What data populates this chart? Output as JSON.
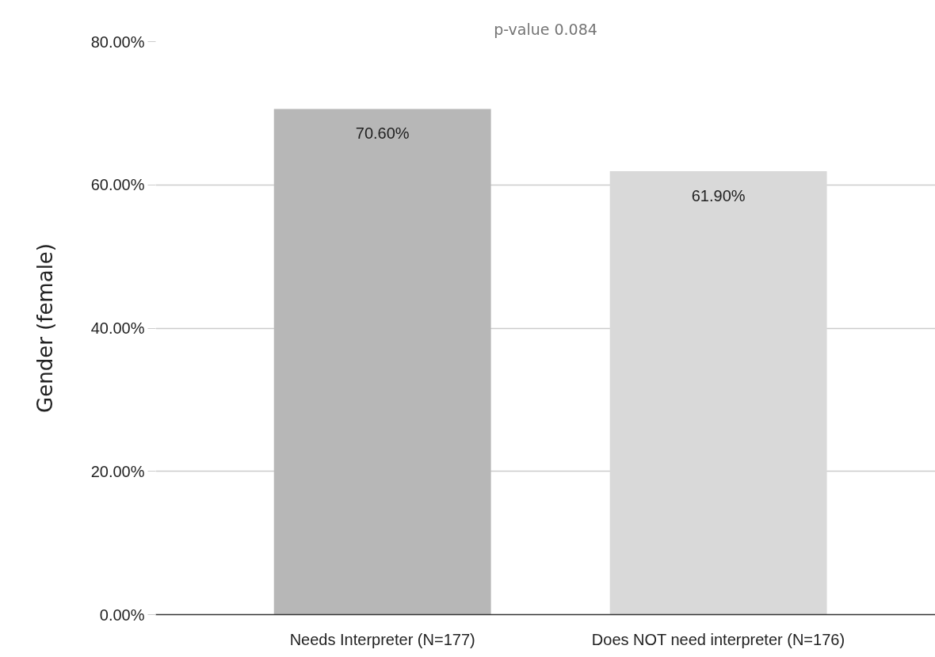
{
  "chart_data": {
    "type": "bar",
    "title": "p-value 0.084",
    "ylabel": "Gender (female)",
    "categories": [
      "Needs Interpreter (N=177)",
      "Does NOT need interpreter (N=176)"
    ],
    "values": [
      70.6,
      61.9
    ],
    "colors": [
      "#b7b7b7",
      "#d9d9d9"
    ],
    "value_labels": [
      "70.60%",
      "61.90%"
    ],
    "ylim": [
      0,
      80
    ],
    "yticks": [
      {
        "value": 0,
        "label": "0.00%"
      },
      {
        "value": 20,
        "label": "20.00%"
      },
      {
        "value": 40,
        "label": "40.00%"
      },
      {
        "value": 60,
        "label": "60.00%"
      },
      {
        "value": 80,
        "label": "80.00%"
      }
    ],
    "grid": "y"
  }
}
